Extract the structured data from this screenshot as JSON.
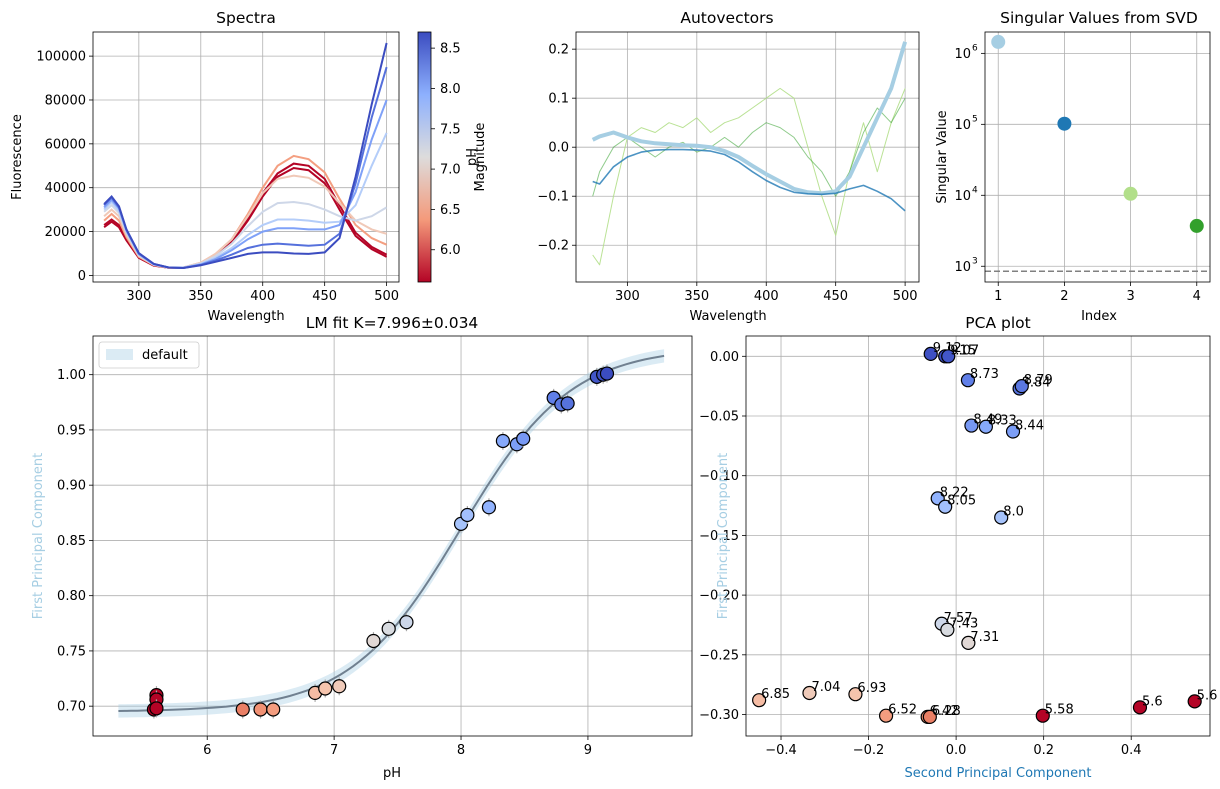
{
  "figure": {
    "spectra": {
      "title": "Spectra",
      "xlabel": "Wavelength",
      "ylabel": "Fluorescence",
      "x_ticks": [
        "300",
        "350",
        "400",
        "450",
        "500"
      ],
      "y_ticks": [
        "0",
        "20000",
        "40000",
        "60000",
        "80000",
        "100000"
      ],
      "colorbar_label": "pH",
      "colorbar_ticks": [
        "6.0",
        "6.5",
        "7.0",
        "7.5",
        "8.0",
        "8.5"
      ]
    },
    "autovectors": {
      "title": "Autovectors",
      "xlabel": "Wavelength",
      "ylabel": "Magnitude",
      "x_ticks": [
        "300",
        "350",
        "400",
        "450",
        "500"
      ],
      "y_ticks": [
        "−0.2",
        "−0.1",
        "0.0",
        "0.1",
        "0.2"
      ]
    },
    "svd": {
      "title": "Singular Values from SVD",
      "xlabel": "Index",
      "ylabel": "Singular Value",
      "x_ticks": [
        "1",
        "2",
        "3",
        "4"
      ],
      "y_ticks": [
        "10",
        "10",
        "10",
        "10"
      ],
      "y_tick_exponents": [
        "3",
        "4",
        "5",
        "6"
      ]
    },
    "fit": {
      "title": "LM fit K=7.996±0.034",
      "xlabel": "pH",
      "ylabel": "First Principal Component",
      "legend": "default",
      "x_ticks": [
        "6",
        "7",
        "8",
        "9"
      ],
      "y_ticks": [
        "0.70",
        "0.75",
        "0.80",
        "0.85",
        "0.90",
        "0.95",
        "1.00"
      ]
    },
    "pca": {
      "title": "PCA plot",
      "xlabel": "Second Principal Component",
      "ylabel": "First Principal Component",
      "x_ticks": [
        "−0.4",
        "−0.2",
        "0.0",
        "0.2",
        "0.4"
      ],
      "y_ticks": [
        "−0.30",
        "−0.25",
        "−0.20",
        "−0.15",
        "−0.10",
        "−0.05",
        "0.00"
      ]
    }
  },
  "chart_data": [
    {
      "type": "line",
      "title": "Spectra",
      "xlabel": "Wavelength",
      "ylabel": "Fluorescence",
      "xlim": [
        263,
        510
      ],
      "ylim": [
        -3000,
        111000
      ],
      "colormap": "coolwarm_r",
      "color_range": [
        5.6,
        8.7
      ],
      "x": [
        272,
        278,
        284,
        290,
        300,
        312,
        324,
        336,
        350,
        362,
        375,
        388,
        400,
        412,
        425,
        437,
        450,
        462,
        475,
        488,
        500
      ],
      "series": [
        {
          "ph": 5.58,
          "values": [
            22000,
            24500,
            22000,
            16000,
            8000,
            4500,
            3500,
            3500,
            5500,
            9000,
            15000,
            25000,
            36000,
            45000,
            49000,
            48000,
            42000,
            30000,
            18000,
            12000,
            8500
          ]
        },
        {
          "ph": 5.6,
          "values": [
            23000,
            25500,
            23000,
            16500,
            8200,
            4600,
            3500,
            3500,
            5600,
            9200,
            15500,
            26000,
            37500,
            46500,
            51000,
            50000,
            44000,
            32000,
            19500,
            13000,
            9500
          ]
        },
        {
          "ph": 6.42,
          "values": [
            25000,
            28000,
            25000,
            17500,
            8500,
            4700,
            3500,
            3600,
            5800,
            9800,
            16500,
            28000,
            40000,
            50000,
            54500,
            53000,
            47000,
            35000,
            23000,
            17000,
            14000
          ]
        },
        {
          "ph": 6.85,
          "values": [
            27000,
            30000,
            27000,
            18500,
            8800,
            4800,
            3500,
            3600,
            5800,
            9800,
            16500,
            27000,
            37500,
            44000,
            45500,
            44500,
            40500,
            33000,
            25000,
            21000,
            19000
          ]
        },
        {
          "ph": 7.31,
          "values": [
            29000,
            32000,
            28500,
            19500,
            9200,
            5000,
            3600,
            3600,
            5500,
            8800,
            14500,
            22500,
            29000,
            33000,
            33500,
            32500,
            30000,
            27000,
            25000,
            27000,
            31000
          ]
        },
        {
          "ph": 7.57,
          "values": [
            30000,
            33500,
            29500,
            20000,
            9500,
            5000,
            3600,
            3500,
            5200,
            8000,
            12500,
            18500,
            23000,
            25500,
            25500,
            25000,
            24000,
            24500,
            32000,
            50000,
            65000
          ]
        },
        {
          "ph": 8.05,
          "values": [
            31000,
            34500,
            30500,
            20500,
            9700,
            5100,
            3600,
            3500,
            5000,
            7500,
            11500,
            16500,
            20000,
            21500,
            21500,
            21000,
            21000,
            23000,
            38000,
            62000,
            80000
          ]
        },
        {
          "ph": 8.44,
          "values": [
            32000,
            35500,
            31000,
            21000,
            10000,
            5200,
            3600,
            3400,
            4800,
            6800,
            9500,
            12500,
            14000,
            14500,
            14000,
            13500,
            14000,
            19000,
            42000,
            72000,
            95000
          ]
        },
        {
          "ph": 9.12,
          "values": [
            32500,
            36000,
            31500,
            21000,
            10200,
            5300,
            3600,
            3400,
            4600,
            6200,
            8000,
            9800,
            10500,
            10500,
            10000,
            9800,
            10500,
            17000,
            45000,
            78000,
            106000
          ]
        }
      ]
    },
    {
      "type": "line",
      "title": "Autovectors",
      "xlabel": "Wavelength",
      "ylabel": "Magnitude",
      "xlim": [
        263,
        510
      ],
      "ylim": [
        -0.275,
        0.235
      ],
      "x": [
        275,
        280,
        290,
        300,
        310,
        320,
        330,
        340,
        350,
        360,
        370,
        380,
        390,
        400,
        410,
        420,
        430,
        440,
        450,
        460,
        470,
        480,
        490,
        500
      ],
      "series": [
        {
          "name": "",
          "color": "#a6cee3",
          "values": [
            0.015,
            0.022,
            0.03,
            0.02,
            0.012,
            0.008,
            0.006,
            0.004,
            0.003,
            0.0,
            -0.008,
            -0.02,
            -0.038,
            -0.055,
            -0.07,
            -0.085,
            -0.092,
            -0.094,
            -0.09,
            -0.06,
            0.0,
            0.06,
            0.12,
            0.215
          ]
        },
        {
          "name": "",
          "color": "#1f78b4",
          "values": [
            -0.07,
            -0.075,
            -0.04,
            -0.02,
            -0.01,
            -0.006,
            -0.005,
            -0.005,
            -0.006,
            -0.008,
            -0.015,
            -0.03,
            -0.05,
            -0.068,
            -0.082,
            -0.092,
            -0.095,
            -0.096,
            -0.094,
            -0.085,
            -0.078,
            -0.09,
            -0.105,
            -0.13
          ]
        },
        {
          "name": "",
          "color": "#b2df8a",
          "values": [
            -0.22,
            -0.24,
            -0.1,
            0.02,
            0.04,
            0.03,
            0.05,
            0.04,
            0.06,
            0.03,
            0.05,
            0.06,
            0.08,
            0.1,
            0.12,
            0.1,
            0.0,
            -0.1,
            -0.18,
            -0.05,
            0.05,
            -0.05,
            0.05,
            0.12
          ]
        },
        {
          "name": "",
          "color": "#33a02c",
          "values": [
            -0.1,
            -0.05,
            0.0,
            0.02,
            0.0,
            -0.02,
            0.0,
            0.01,
            -0.01,
            0.0,
            0.02,
            0.0,
            0.03,
            0.05,
            0.04,
            0.02,
            -0.02,
            -0.05,
            -0.1,
            -0.05,
            0.03,
            0.08,
            0.05,
            0.1
          ]
        }
      ]
    },
    {
      "type": "scatter",
      "title": "Singular Values from SVD",
      "xlabel": "Index",
      "ylabel": "Singular Value",
      "yscale": "log",
      "xlim": [
        0.8,
        4.2
      ],
      "ylim": [
        600,
        2000000
      ],
      "points": [
        {
          "x": 1,
          "y": 1450000,
          "color": "#a6cee3"
        },
        {
          "x": 2,
          "y": 102000,
          "color": "#1f78b4"
        },
        {
          "x": 3,
          "y": 10500,
          "color": "#b2df8a"
        },
        {
          "x": 4,
          "y": 3700,
          "color": "#33a02c"
        }
      ],
      "hline": 850
    },
    {
      "type": "scatter",
      "title": "LM fit K=7.996±0.034",
      "xlabel": "pH",
      "ylabel": "First Principal Component",
      "xlim": [
        5.1,
        9.82
      ],
      "ylim": [
        0.673,
        1.035
      ],
      "legend": [
        "default"
      ],
      "legend_loc": "top-left",
      "fit": {
        "K": 7.996,
        "bottom": 0.695,
        "top": 1.025
      },
      "points": [
        {
          "x": 5.58,
          "y": 0.697
        },
        {
          "x": 5.6,
          "y": 0.71
        },
        {
          "x": 5.6,
          "y": 0.706
        },
        {
          "x": 5.6,
          "y": 0.698
        },
        {
          "x": 6.28,
          "y": 0.697
        },
        {
          "x": 6.42,
          "y": 0.697
        },
        {
          "x": 6.52,
          "y": 0.697
        },
        {
          "x": 6.85,
          "y": 0.712
        },
        {
          "x": 6.93,
          "y": 0.716
        },
        {
          "x": 7.04,
          "y": 0.718
        },
        {
          "x": 7.31,
          "y": 0.759
        },
        {
          "x": 7.43,
          "y": 0.77
        },
        {
          "x": 7.57,
          "y": 0.776
        },
        {
          "x": 8.0,
          "y": 0.865
        },
        {
          "x": 8.05,
          "y": 0.873
        },
        {
          "x": 8.22,
          "y": 0.88
        },
        {
          "x": 8.33,
          "y": 0.94
        },
        {
          "x": 8.44,
          "y": 0.937
        },
        {
          "x": 8.49,
          "y": 0.942
        },
        {
          "x": 8.73,
          "y": 0.979
        },
        {
          "x": 8.79,
          "y": 0.973
        },
        {
          "x": 8.84,
          "y": 0.974
        },
        {
          "x": 9.07,
          "y": 0.998
        },
        {
          "x": 9.12,
          "y": 1.0
        },
        {
          "x": 9.15,
          "y": 1.001
        }
      ]
    },
    {
      "type": "scatter",
      "title": "PCA plot",
      "xlabel": "Second Principal Component",
      "ylabel": "First Principal Component",
      "xlim": [
        -0.48,
        0.58
      ],
      "ylim": [
        -0.318,
        0.017
      ],
      "points": [
        {
          "x": -0.058,
          "y": 0.002,
          "label": "9.12",
          "ph": 9.12
        },
        {
          "x": -0.025,
          "y": 0.0,
          "label": "9.15",
          "ph": 9.15
        },
        {
          "x": -0.018,
          "y": 0.0,
          "label": "9.07",
          "ph": 9.07
        },
        {
          "x": 0.027,
          "y": -0.02,
          "label": "8.73",
          "ph": 8.73
        },
        {
          "x": 0.145,
          "y": -0.027,
          "label": "8.84",
          "ph": 8.84
        },
        {
          "x": 0.15,
          "y": -0.025,
          "label": "8.79",
          "ph": 8.79
        },
        {
          "x": 0.035,
          "y": -0.058,
          "label": "8.49",
          "ph": 8.49
        },
        {
          "x": 0.068,
          "y": -0.059,
          "label": "8.33",
          "ph": 8.33
        },
        {
          "x": 0.13,
          "y": -0.063,
          "label": "8.44",
          "ph": 8.44
        },
        {
          "x": -0.042,
          "y": -0.119,
          "label": "8.22",
          "ph": 8.22
        },
        {
          "x": -0.025,
          "y": -0.126,
          "label": "8.05",
          "ph": 8.05
        },
        {
          "x": 0.103,
          "y": -0.135,
          "label": "8.0",
          "ph": 8.0
        },
        {
          "x": -0.033,
          "y": -0.224,
          "label": "7.57",
          "ph": 7.57
        },
        {
          "x": -0.02,
          "y": -0.229,
          "label": "7.43",
          "ph": 7.43
        },
        {
          "x": 0.028,
          "y": -0.24,
          "label": "7.31",
          "ph": 7.31
        },
        {
          "x": -0.45,
          "y": -0.288,
          "label": "6.85",
          "ph": 6.85
        },
        {
          "x": -0.335,
          "y": -0.282,
          "label": "7.04",
          "ph": 7.04
        },
        {
          "x": -0.23,
          "y": -0.283,
          "label": "6.93",
          "ph": 6.93
        },
        {
          "x": -0.16,
          "y": -0.301,
          "label": "6.52",
          "ph": 6.52
        },
        {
          "x": -0.065,
          "y": -0.302,
          "label": "6.42",
          "ph": 6.42
        },
        {
          "x": -0.06,
          "y": -0.302,
          "label": "6.28",
          "ph": 6.28
        },
        {
          "x": 0.198,
          "y": -0.301,
          "label": "5.58",
          "ph": 5.58
        },
        {
          "x": 0.42,
          "y": -0.294,
          "label": "5.6",
          "ph": 5.6
        },
        {
          "x": 0.545,
          "y": -0.289,
          "label": "5.6",
          "ph": 5.6
        }
      ]
    }
  ]
}
